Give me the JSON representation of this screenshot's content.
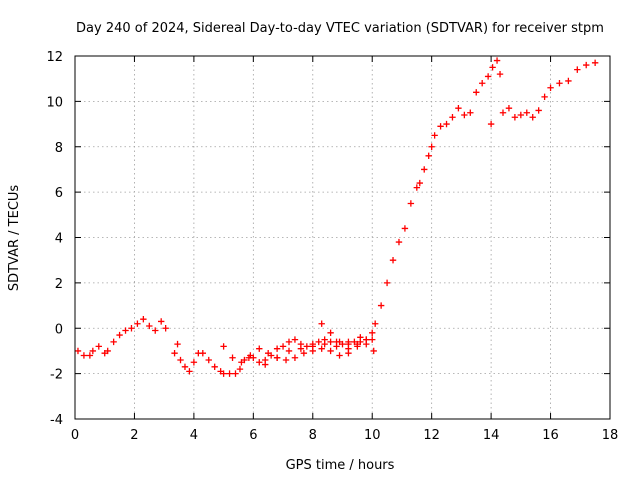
{
  "chart_data": {
    "type": "scatter",
    "title": "Day 240 of 2024, Sidereal Day-to-day VTEC variation (SDTVAR) for receiver stpm",
    "xlabel": "GPS time / hours",
    "ylabel": "SDTVAR / TECUs",
    "xlim": [
      0,
      18
    ],
    "ylim": [
      -4,
      12
    ],
    "xticks": [
      0,
      2,
      4,
      6,
      8,
      10,
      12,
      14,
      16,
      18
    ],
    "yticks": [
      -4,
      -2,
      0,
      2,
      4,
      6,
      8,
      10,
      12
    ],
    "grid": true,
    "marker": "+",
    "color": "#ff0000",
    "series": [
      {
        "name": "SDTVAR",
        "x": [
          0.1,
          0.3,
          0.5,
          0.6,
          0.8,
          1.0,
          1.1,
          1.3,
          1.5,
          1.7,
          1.9,
          2.1,
          2.3,
          2.5,
          2.7,
          2.9,
          3.05,
          3.35,
          3.45,
          3.55,
          3.7,
          3.85,
          4.0,
          4.15,
          4.3,
          4.5,
          4.7,
          4.9,
          5.0,
          5.2,
          5.4,
          5.55,
          5.7,
          5.85,
          6.0,
          6.2,
          6.4,
          6.6,
          6.8,
          7.0,
          7.2,
          7.4,
          7.6,
          7.8,
          8.0,
          8.2,
          8.4,
          8.6,
          8.8,
          9.0,
          9.2,
          9.4,
          9.6,
          9.8,
          10.0,
          10.1,
          10.3,
          10.5,
          10.7,
          10.9,
          11.1,
          11.3,
          11.5,
          11.6,
          11.75,
          11.9,
          12.0,
          12.1,
          12.3,
          12.5,
          12.7,
          12.9,
          13.1,
          13.3,
          13.5,
          13.7,
          13.9,
          14.05,
          14.2,
          14.3,
          14.0,
          14.4,
          14.6,
          14.8,
          15.0,
          15.2,
          15.4,
          15.6,
          15.8,
          16.0,
          16.3,
          16.6,
          16.9,
          17.2,
          17.5,
          5.0,
          5.3,
          5.6,
          5.9,
          6.2,
          6.5,
          6.8,
          7.1,
          7.4,
          7.7,
          8.0,
          8.3,
          8.6,
          8.9,
          9.2,
          9.5,
          9.8,
          10.05,
          6.4,
          6.8,
          7.2,
          7.6,
          8.0,
          8.4,
          8.8,
          9.2,
          9.6,
          10.0,
          8.3,
          8.6,
          8.9,
          9.2,
          9.5,
          9.8
        ],
        "y": [
          -1.0,
          -1.2,
          -1.2,
          -1.0,
          -0.8,
          -1.1,
          -1.0,
          -0.6,
          -0.3,
          -0.1,
          0.0,
          0.2,
          0.4,
          0.1,
          -0.1,
          0.3,
          0.0,
          -1.1,
          -0.7,
          -1.4,
          -1.7,
          -1.9,
          -1.5,
          -1.1,
          -1.1,
          -1.4,
          -1.7,
          -1.9,
          -2.0,
          -2.0,
          -2.0,
          -1.8,
          -1.4,
          -1.3,
          -1.3,
          -1.5,
          -1.4,
          -1.2,
          -0.9,
          -0.8,
          -0.6,
          -0.5,
          -0.7,
          -0.8,
          -0.7,
          -0.6,
          -0.5,
          -0.6,
          -0.8,
          -0.7,
          -0.6,
          -0.6,
          -0.4,
          -0.7,
          -0.2,
          0.2,
          1.0,
          2.0,
          3.0,
          3.8,
          4.4,
          5.5,
          6.2,
          6.4,
          7.0,
          7.6,
          8.0,
          8.5,
          8.9,
          9.0,
          9.3,
          9.7,
          9.4,
          9.5,
          10.4,
          10.8,
          11.1,
          11.5,
          11.8,
          11.2,
          9.0,
          9.5,
          9.7,
          9.3,
          9.4,
          9.5,
          9.3,
          9.6,
          10.2,
          10.6,
          10.8,
          10.9,
          11.4,
          11.6,
          11.7,
          -0.8,
          -1.3,
          -1.5,
          -1.2,
          -0.9,
          -1.1,
          -1.3,
          -1.4,
          -1.3,
          -1.1,
          -1.0,
          -0.9,
          -1.0,
          -1.2,
          -0.9,
          -0.7,
          -0.5,
          -1.0,
          -1.6,
          -1.3,
          -1.0,
          -0.9,
          -0.8,
          -0.7,
          -0.6,
          -0.7,
          -0.6,
          -0.5,
          0.2,
          -0.2,
          -0.6,
          -1.1,
          -0.8,
          -0.5
        ]
      }
    ]
  }
}
